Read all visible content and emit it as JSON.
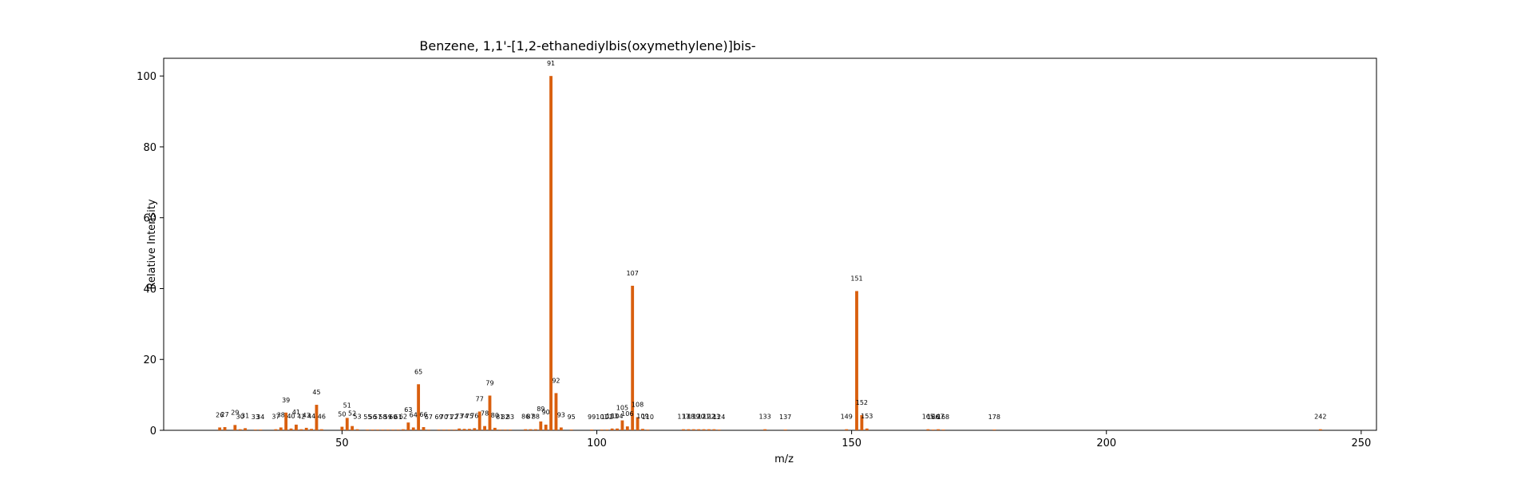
{
  "chart_data": {
    "type": "bar",
    "title": "Benzene, 1,1'-[1,2-ethanediylbis(oxymethylene)]bis-",
    "xlabel": "m/z",
    "ylabel": "Relative Intensity",
    "xlim": [
      15,
      253
    ],
    "ylim": [
      0,
      105
    ],
    "xticks": [
      50,
      100,
      150,
      200,
      250
    ],
    "yticks": [
      0,
      20,
      40,
      60,
      80,
      100
    ],
    "grid": false,
    "bar_color": "#d95f0e",
    "peaks": [
      {
        "x": 26,
        "y": 0.8
      },
      {
        "x": 27,
        "y": 0.9
      },
      {
        "x": 29,
        "y": 1.5
      },
      {
        "x": 30,
        "y": 0.3
      },
      {
        "x": 31,
        "y": 0.6
      },
      {
        "x": 33,
        "y": 0.2
      },
      {
        "x": 34,
        "y": 0.2
      },
      {
        "x": 37,
        "y": 0.3
      },
      {
        "x": 38,
        "y": 0.8
      },
      {
        "x": 39,
        "y": 5.0
      },
      {
        "x": 40,
        "y": 0.5
      },
      {
        "x": 41,
        "y": 1.6
      },
      {
        "x": 42,
        "y": 0.3
      },
      {
        "x": 43,
        "y": 0.7
      },
      {
        "x": 44,
        "y": 0.4
      },
      {
        "x": 45,
        "y": 7.2
      },
      {
        "x": 46,
        "y": 0.3
      },
      {
        "x": 50,
        "y": 1.0
      },
      {
        "x": 51,
        "y": 3.5
      },
      {
        "x": 52,
        "y": 1.2
      },
      {
        "x": 53,
        "y": 0.3
      },
      {
        "x": 55,
        "y": 0.2
      },
      {
        "x": 56,
        "y": 0.2
      },
      {
        "x": 57,
        "y": 0.2
      },
      {
        "x": 58,
        "y": 0.2
      },
      {
        "x": 59,
        "y": 0.2
      },
      {
        "x": 60,
        "y": 0.2
      },
      {
        "x": 61,
        "y": 0.2
      },
      {
        "x": 62,
        "y": 0.3
      },
      {
        "x": 63,
        "y": 2.2
      },
      {
        "x": 64,
        "y": 0.8
      },
      {
        "x": 65,
        "y": 13.0
      },
      {
        "x": 66,
        "y": 0.9
      },
      {
        "x": 67,
        "y": 0.2
      },
      {
        "x": 69,
        "y": 0.2
      },
      {
        "x": 70,
        "y": 0.2
      },
      {
        "x": 71,
        "y": 0.2
      },
      {
        "x": 72,
        "y": 0.2
      },
      {
        "x": 73,
        "y": 0.5
      },
      {
        "x": 74,
        "y": 0.4
      },
      {
        "x": 75,
        "y": 0.4
      },
      {
        "x": 76,
        "y": 0.6
      },
      {
        "x": 77,
        "y": 5.3
      },
      {
        "x": 78,
        "y": 1.2
      },
      {
        "x": 79,
        "y": 9.8
      },
      {
        "x": 80,
        "y": 0.7
      },
      {
        "x": 81,
        "y": 0.2
      },
      {
        "x": 82,
        "y": 0.2
      },
      {
        "x": 83,
        "y": 0.2
      },
      {
        "x": 86,
        "y": 0.3
      },
      {
        "x": 87,
        "y": 0.3
      },
      {
        "x": 88,
        "y": 0.3
      },
      {
        "x": 89,
        "y": 2.5
      },
      {
        "x": 90,
        "y": 1.6
      },
      {
        "x": 91,
        "y": 100.0
      },
      {
        "x": 92,
        "y": 10.5
      },
      {
        "x": 93,
        "y": 0.8
      },
      {
        "x": 95,
        "y": 0.2
      },
      {
        "x": 99,
        "y": 0.2
      },
      {
        "x": 101,
        "y": 0.2
      },
      {
        "x": 102,
        "y": 0.2
      },
      {
        "x": 103,
        "y": 0.5
      },
      {
        "x": 104,
        "y": 0.5
      },
      {
        "x": 105,
        "y": 2.8
      },
      {
        "x": 106,
        "y": 1.1
      },
      {
        "x": 107,
        "y": 40.8
      },
      {
        "x": 108,
        "y": 3.7
      },
      {
        "x": 109,
        "y": 0.4
      },
      {
        "x": 110,
        "y": 0.2
      },
      {
        "x": 117,
        "y": 0.3
      },
      {
        "x": 118,
        "y": 0.3
      },
      {
        "x": 119,
        "y": 0.3
      },
      {
        "x": 120,
        "y": 0.3
      },
      {
        "x": 121,
        "y": 0.3
      },
      {
        "x": 122,
        "y": 0.3
      },
      {
        "x": 123,
        "y": 0.3
      },
      {
        "x": 124,
        "y": 0.2
      },
      {
        "x": 133,
        "y": 0.3
      },
      {
        "x": 137,
        "y": 0.2
      },
      {
        "x": 149,
        "y": 0.3
      },
      {
        "x": 151,
        "y": 39.3
      },
      {
        "x": 152,
        "y": 4.3
      },
      {
        "x": 153,
        "y": 0.5
      },
      {
        "x": 165,
        "y": 0.3
      },
      {
        "x": 166,
        "y": 0.2
      },
      {
        "x": 167,
        "y": 0.3
      },
      {
        "x": 168,
        "y": 0.2
      },
      {
        "x": 178,
        "y": 0.2
      },
      {
        "x": 242,
        "y": 0.3
      }
    ]
  }
}
